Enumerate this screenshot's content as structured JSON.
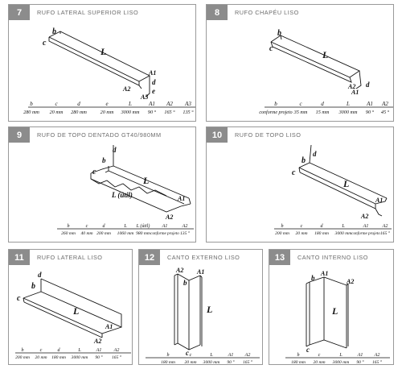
{
  "panels": [
    {
      "id": "7",
      "number": "7",
      "title": "RUFO LATERAL SUPERIOR LISO",
      "labels": {
        "b": "b",
        "c": "c",
        "L": "L",
        "A1": "A1",
        "d": "d",
        "A2": "A2",
        "e": "e",
        "A3": "A3"
      },
      "specs": {
        "headers": [
          "b",
          "c",
          "d",
          "e",
          "L",
          "A1",
          "A2",
          "A3"
        ],
        "values": [
          "280 mm",
          "20 mm",
          "280 mm",
          "20 mm",
          "3000 mm",
          "90 °",
          "165 °",
          "135 °"
        ]
      }
    },
    {
      "id": "8",
      "number": "8",
      "title": "RUFO CHAPÉU LISO",
      "labels": {
        "b": "b",
        "c": "c",
        "L": "L",
        "A2": "A2",
        "A1": "A1",
        "d": "d"
      },
      "specs": {
        "headers": [
          "b",
          "c",
          "d",
          "L",
          "A1",
          "A2"
        ],
        "values": [
          "conforme projeto",
          "35 mm",
          "15 mm",
          "3000 mm",
          "90 °",
          "45 °"
        ]
      }
    },
    {
      "id": "9",
      "number": "9",
      "title": "RUFO DE TOPO DENTADO GT40/980MM",
      "labels": {
        "d": "d",
        "b": "b",
        "c": "c",
        "L": "L",
        "L_util": "L (útil)",
        "A1": "A1",
        "A2": "A2"
      },
      "specs": {
        "headers": [
          "b",
          "c",
          "d",
          "L",
          "L (útil)",
          "A1",
          "A2"
        ],
        "values": [
          "260 mm",
          "40 mm",
          "200 mm",
          "1060 mm",
          "980 mm",
          "conforme projeto",
          "135 °"
        ]
      }
    },
    {
      "id": "10",
      "number": "10",
      "title": "RUFO DE TOPO LISO",
      "labels": {
        "d": "d",
        "b": "b",
        "c": "c",
        "L": "L",
        "A1": "A1",
        "A2": "A2"
      },
      "specs": {
        "headers": [
          "b",
          "c",
          "d",
          "L",
          "A1",
          "A2"
        ],
        "values": [
          "200 mm",
          "20 mm",
          "180 mm",
          "3000 mm",
          "conforme projeto",
          "165 °"
        ]
      }
    },
    {
      "id": "11",
      "number": "11",
      "title": "RUFO LATERAL LISO",
      "labels": {
        "d": "d",
        "b": "b",
        "c": "c",
        "L": "L",
        "A1": "A1",
        "A2": "A2"
      },
      "specs": {
        "headers": [
          "b",
          "c",
          "d",
          "L",
          "A1",
          "A2"
        ],
        "values": [
          "200 mm",
          "20 mm",
          "180 mm",
          "3000 mm",
          "90 °",
          "165 °"
        ]
      }
    },
    {
      "id": "12",
      "number": "12",
      "title": "CANTO EXTERNO LISO",
      "labels": {
        "A2": "A2",
        "A1": "A1",
        "b": "b",
        "c": "c",
        "L": "L"
      },
      "specs": {
        "headers": [
          "b",
          "c",
          "L",
          "A1",
          "A2"
        ],
        "values": [
          "180 mm",
          "20 mm",
          "3000 mm",
          "90 °",
          "165 °"
        ]
      }
    },
    {
      "id": "13",
      "number": "13",
      "title": "CANTO INTERNO LISO",
      "labels": {
        "A1": "A1",
        "b": "b",
        "A2": "A2",
        "L": "L",
        "c": "c"
      },
      "specs": {
        "headers": [
          "b",
          "c",
          "L",
          "A1",
          "A2"
        ],
        "values": [
          "180 mm",
          "20 mm",
          "3000 mm",
          "90 °",
          "165 °"
        ]
      }
    }
  ]
}
